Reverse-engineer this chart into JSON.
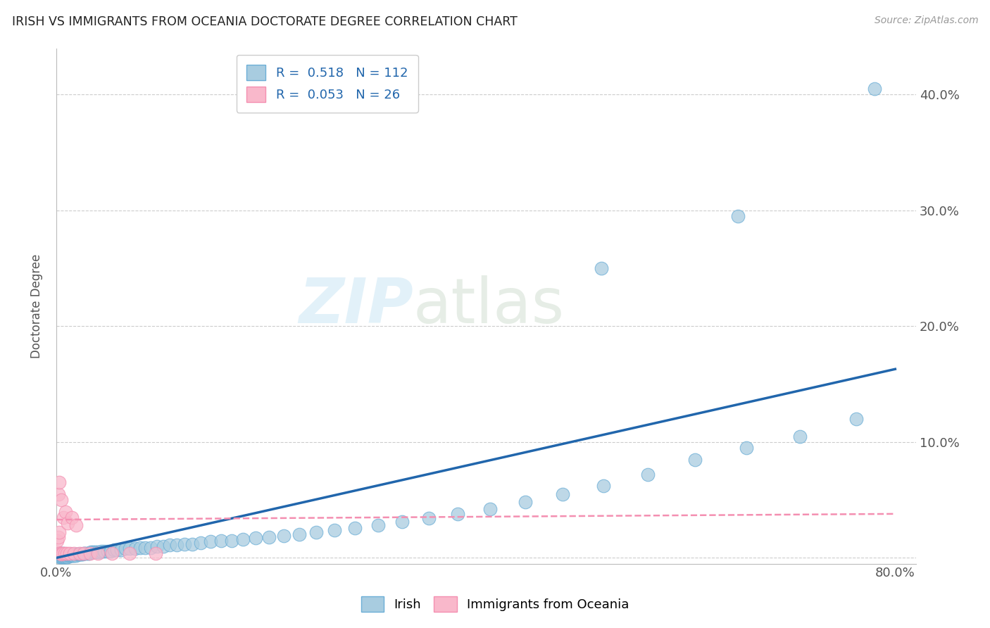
{
  "title": "IRISH VS IMMIGRANTS FROM OCEANIA DOCTORATE DEGREE CORRELATION CHART",
  "source": "Source: ZipAtlas.com",
  "ylabel": "Doctorate Degree",
  "xlim": [
    0.0,
    0.82
  ],
  "ylim": [
    -0.005,
    0.44
  ],
  "xtick_vals": [
    0.0,
    0.1,
    0.2,
    0.3,
    0.4,
    0.5,
    0.6,
    0.7,
    0.8
  ],
  "xticklabels": [
    "0.0%",
    "",
    "",
    "",
    "",
    "",
    "",
    "",
    "80.0%"
  ],
  "ytick_vals": [
    0.0,
    0.1,
    0.2,
    0.3,
    0.4
  ],
  "yticklabels_right": [
    "",
    "10.0%",
    "20.0%",
    "30.0%",
    "40.0%"
  ],
  "irish_R": 0.518,
  "irish_N": 112,
  "oceania_R": 0.053,
  "oceania_N": 26,
  "irish_color": "#a8cce0",
  "irish_edge_color": "#6baed6",
  "oceania_color": "#f9b8cb",
  "oceania_edge_color": "#f48fb1",
  "irish_line_color": "#2166ac",
  "oceania_line_color": "#f48fb1",
  "watermark_zip": "ZIP",
  "watermark_atlas": "atlas",
  "background_color": "#ffffff",
  "irish_line_x0": 0.0,
  "irish_line_y0": 0.0,
  "irish_line_x1": 0.8,
  "irish_line_y1": 0.163,
  "oceania_line_x0": 0.0,
  "oceania_line_y0": 0.033,
  "oceania_line_x1": 0.8,
  "oceania_line_y1": 0.038,
  "irish_x": [
    0.001,
    0.001,
    0.002,
    0.002,
    0.002,
    0.003,
    0.003,
    0.003,
    0.003,
    0.004,
    0.004,
    0.004,
    0.004,
    0.005,
    0.005,
    0.005,
    0.005,
    0.005,
    0.006,
    0.006,
    0.006,
    0.006,
    0.007,
    0.007,
    0.007,
    0.007,
    0.008,
    0.008,
    0.008,
    0.009,
    0.009,
    0.009,
    0.01,
    0.01,
    0.01,
    0.011,
    0.011,
    0.012,
    0.012,
    0.013,
    0.013,
    0.014,
    0.014,
    0.015,
    0.015,
    0.016,
    0.017,
    0.018,
    0.019,
    0.02,
    0.021,
    0.022,
    0.023,
    0.024,
    0.025,
    0.026,
    0.027,
    0.028,
    0.03,
    0.031,
    0.033,
    0.035,
    0.037,
    0.039,
    0.041,
    0.043,
    0.046,
    0.049,
    0.052,
    0.055,
    0.058,
    0.062,
    0.066,
    0.07,
    0.075,
    0.08,
    0.085,
    0.09,
    0.096,
    0.102,
    0.108,
    0.115,
    0.122,
    0.13,
    0.138,
    0.147,
    0.157,
    0.167,
    0.178,
    0.19,
    0.203,
    0.217,
    0.232,
    0.248,
    0.265,
    0.285,
    0.307,
    0.33,
    0.355,
    0.383,
    0.414,
    0.447,
    0.483,
    0.522,
    0.564,
    0.609,
    0.658,
    0.709,
    0.763,
    0.78,
    0.52,
    0.65
  ],
  "irish_y": [
    0.002,
    0.003,
    0.002,
    0.003,
    0.004,
    0.001,
    0.002,
    0.003,
    0.004,
    0.001,
    0.002,
    0.003,
    0.004,
    0.001,
    0.002,
    0.002,
    0.003,
    0.004,
    0.001,
    0.002,
    0.002,
    0.003,
    0.001,
    0.002,
    0.003,
    0.004,
    0.001,
    0.002,
    0.003,
    0.001,
    0.002,
    0.003,
    0.001,
    0.002,
    0.003,
    0.001,
    0.002,
    0.002,
    0.003,
    0.002,
    0.003,
    0.002,
    0.003,
    0.002,
    0.003,
    0.002,
    0.002,
    0.003,
    0.002,
    0.003,
    0.003,
    0.003,
    0.003,
    0.003,
    0.003,
    0.004,
    0.004,
    0.004,
    0.004,
    0.004,
    0.005,
    0.005,
    0.005,
    0.005,
    0.005,
    0.006,
    0.006,
    0.006,
    0.006,
    0.007,
    0.007,
    0.007,
    0.008,
    0.008,
    0.008,
    0.009,
    0.009,
    0.009,
    0.01,
    0.01,
    0.011,
    0.011,
    0.012,
    0.012,
    0.013,
    0.014,
    0.015,
    0.015,
    0.016,
    0.017,
    0.018,
    0.019,
    0.02,
    0.022,
    0.024,
    0.026,
    0.028,
    0.031,
    0.034,
    0.038,
    0.042,
    0.048,
    0.055,
    0.062,
    0.072,
    0.085,
    0.095,
    0.105,
    0.12,
    0.405,
    0.25,
    0.295
  ],
  "oceania_x": [
    0.001,
    0.001,
    0.002,
    0.002,
    0.003,
    0.003,
    0.004,
    0.005,
    0.005,
    0.006,
    0.007,
    0.008,
    0.009,
    0.01,
    0.011,
    0.013,
    0.015,
    0.017,
    0.019,
    0.022,
    0.026,
    0.032,
    0.04,
    0.053,
    0.07,
    0.095
  ],
  "oceania_y": [
    0.005,
    0.015,
    0.018,
    0.055,
    0.022,
    0.065,
    0.004,
    0.003,
    0.05,
    0.004,
    0.035,
    0.004,
    0.04,
    0.004,
    0.03,
    0.004,
    0.035,
    0.004,
    0.028,
    0.004,
    0.004,
    0.004,
    0.004,
    0.004,
    0.004,
    0.004
  ]
}
